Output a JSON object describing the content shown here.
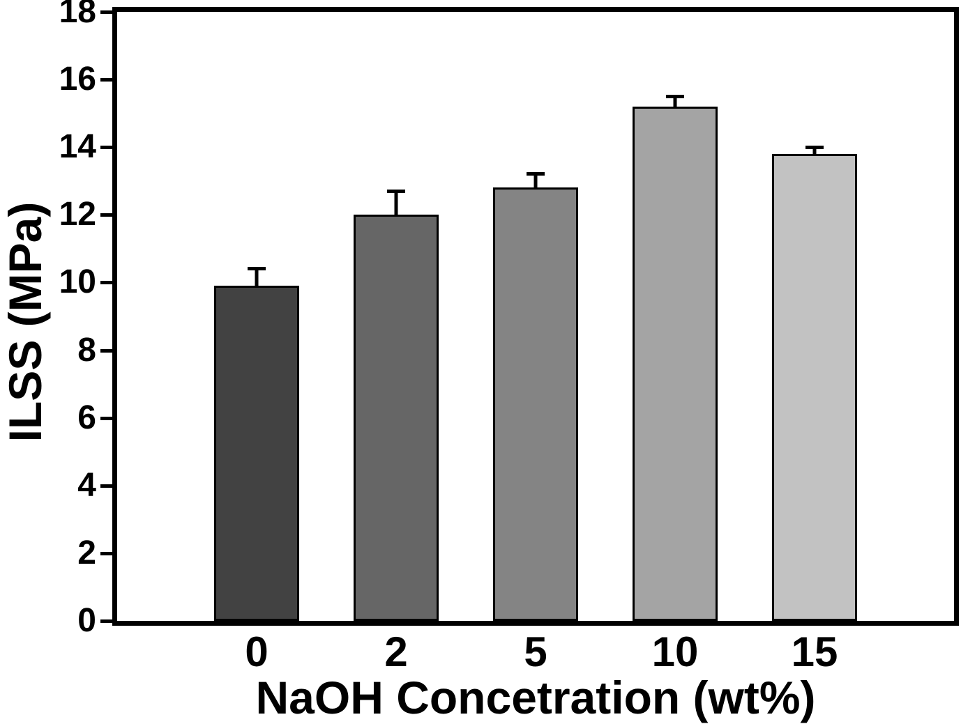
{
  "chart_data": {
    "type": "bar",
    "title": "",
    "xlabel": "NaOH Concetration (wt%)",
    "ylabel": "ILSS (MPa)",
    "categories": [
      "0",
      "2",
      "5",
      "10",
      "15"
    ],
    "values": [
      9.9,
      12.0,
      12.8,
      15.2,
      13.8
    ],
    "errors": [
      0.55,
      0.75,
      0.45,
      0.35,
      0.25
    ],
    "bar_colors": [
      "#424242",
      "#666666",
      "#848484",
      "#a4a4a4",
      "#c2c2c2"
    ],
    "bar_edge_color": "#000000",
    "axis_color": "#000000",
    "background_color": "#ffffff",
    "ylim": [
      0,
      18
    ],
    "yticks": [
      0,
      2,
      4,
      6,
      8,
      10,
      12,
      14,
      16,
      18
    ],
    "grid": false,
    "legend": false,
    "error_bar_direction": "up"
  }
}
